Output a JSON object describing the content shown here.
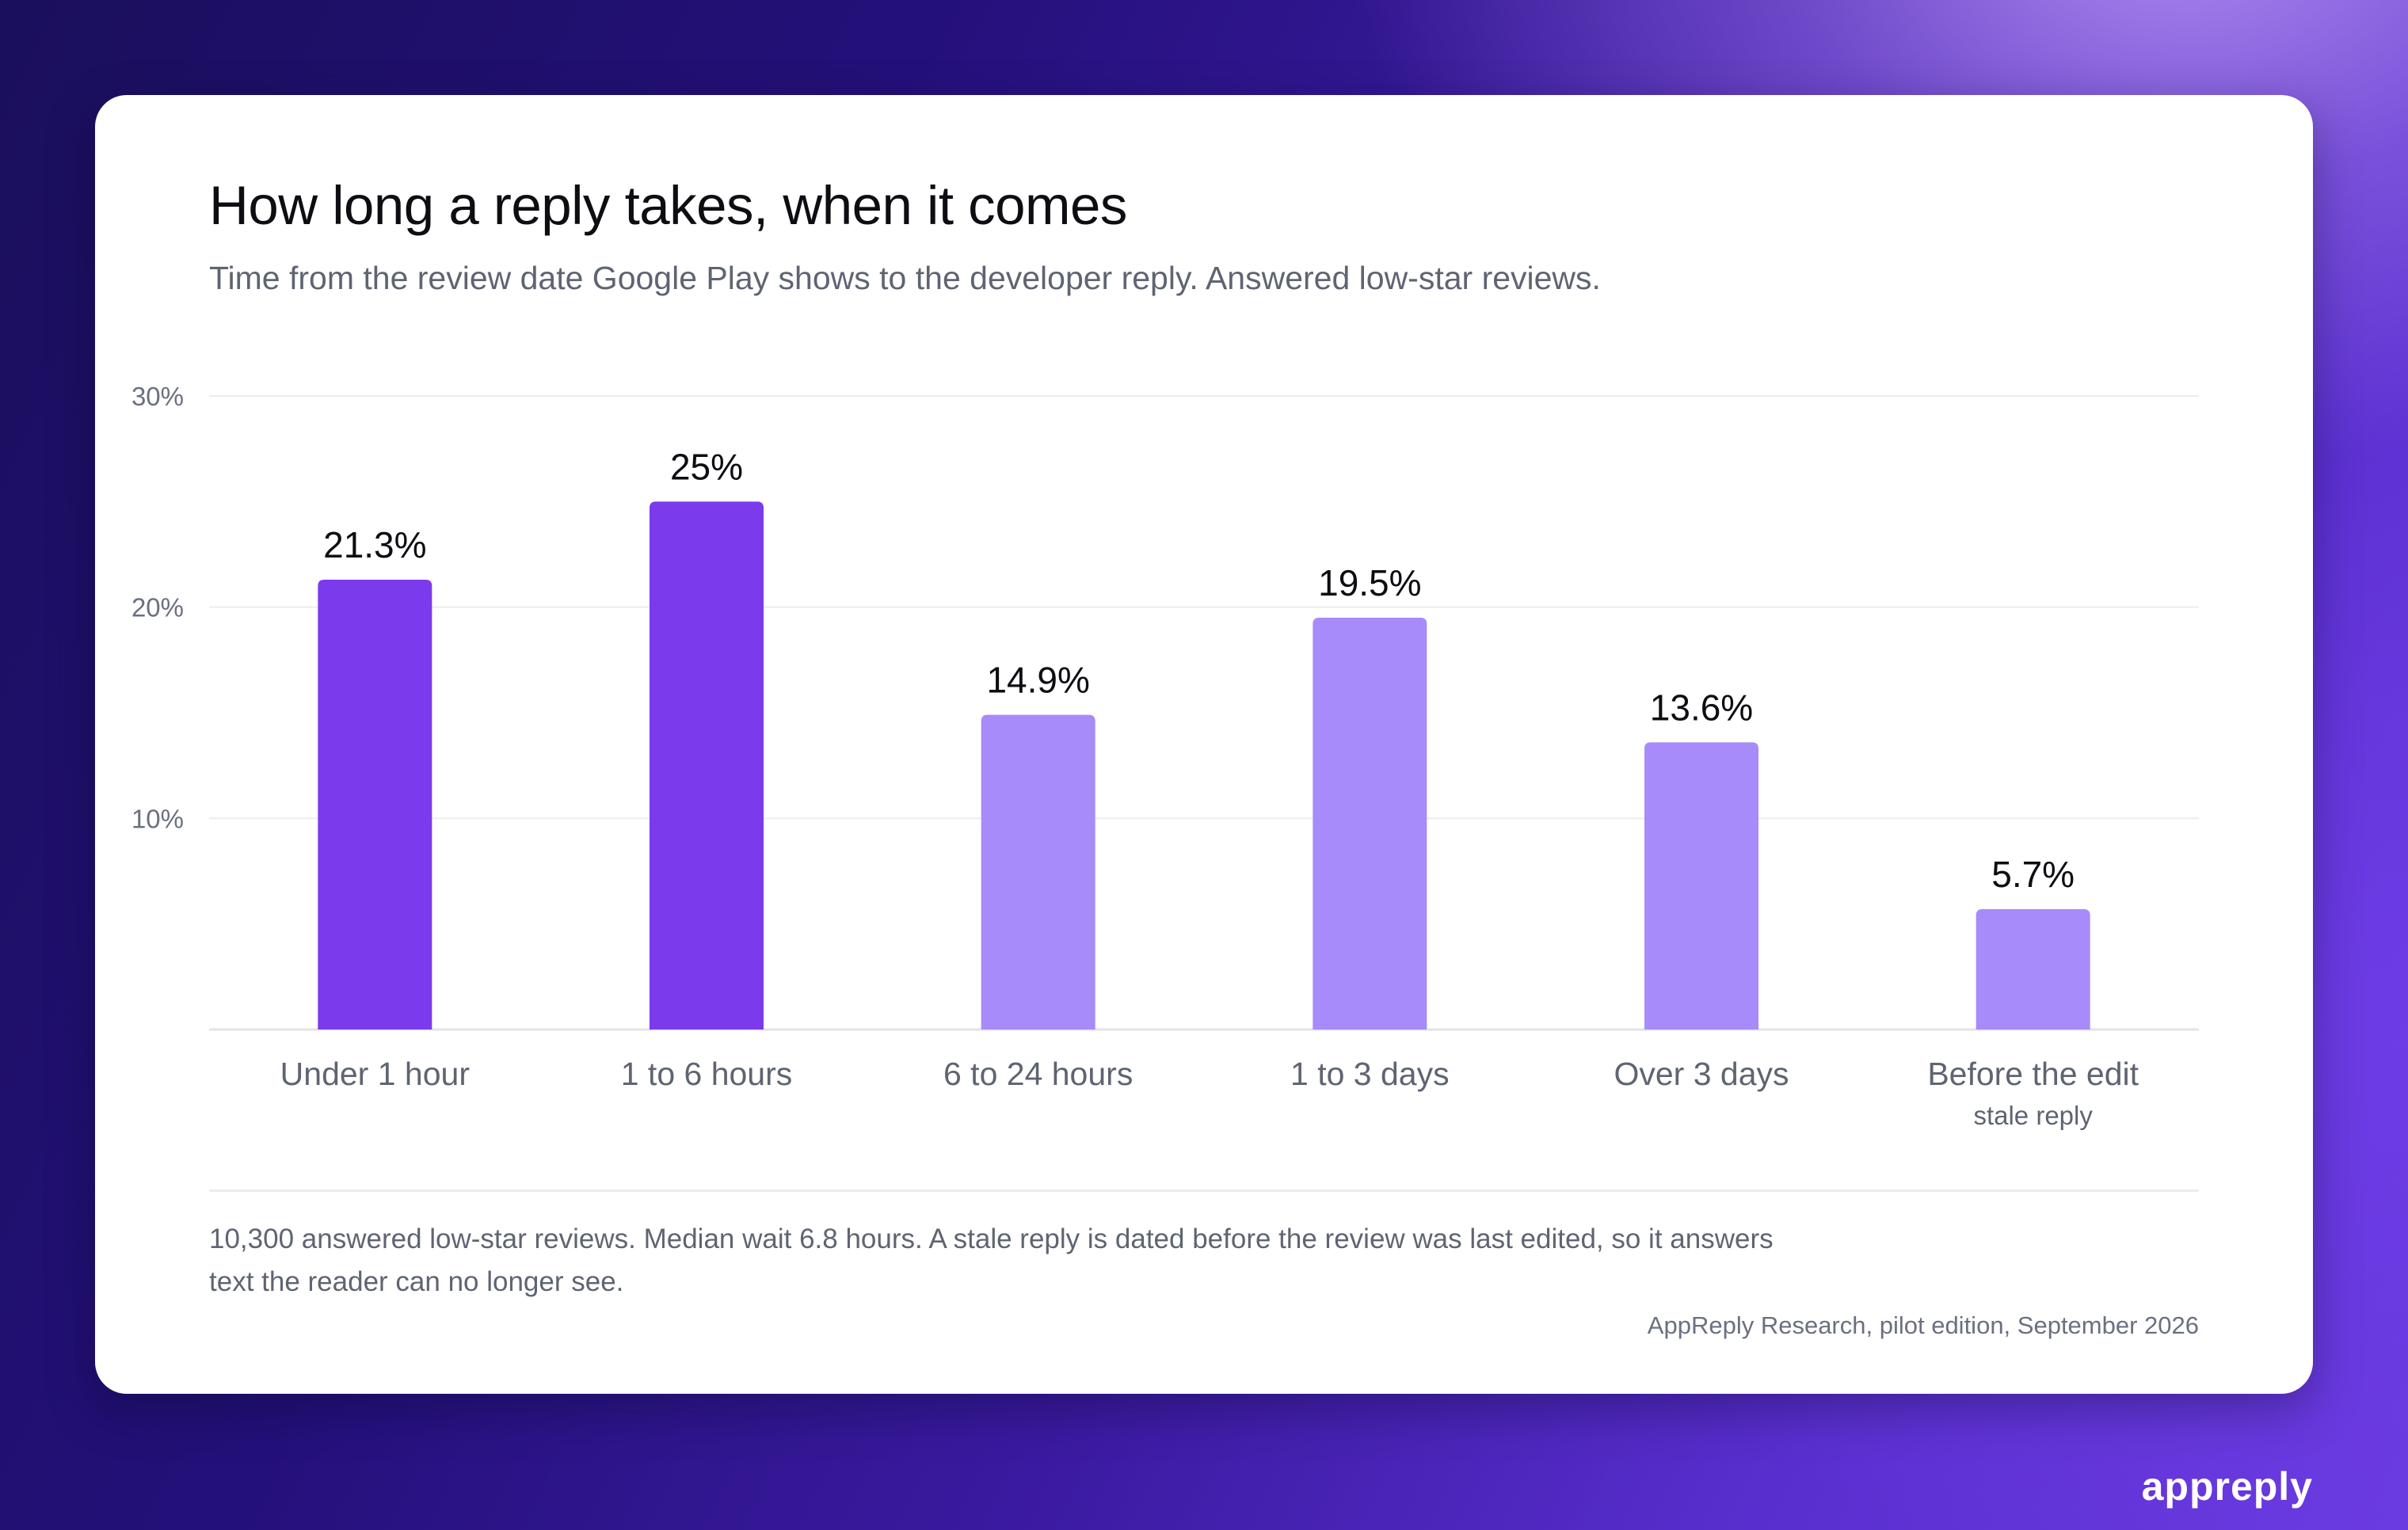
{
  "card": {
    "title": "How long a reply takes, when it comes",
    "subtitle": "Time from the review date Google Play shows to the developer reply. Answered low-star reviews.",
    "footnote": "10,300 answered low-star reviews. Median wait 6.8 hours. A stale reply is dated before the review was last edited, so it answers text the reader can no longer see.",
    "source": "AppReply Research, pilot edition, September 2026"
  },
  "brand": "appreply",
  "chart_data": {
    "type": "bar",
    "categories": [
      "Under 1 hour",
      "1 to 6 hours",
      "6 to 24 hours",
      "1 to 3 days",
      "Over 3 days",
      "Before the edit"
    ],
    "category_sublabels": [
      "",
      "",
      "",
      "",
      "",
      "stale reply"
    ],
    "values": [
      21.3,
      25,
      14.9,
      19.5,
      13.6,
      5.7
    ],
    "value_labels": [
      "21.3%",
      "25%",
      "14.9%",
      "19.5%",
      "13.6%",
      "5.7%"
    ],
    "highlighted": [
      true,
      true,
      false,
      false,
      false,
      false
    ],
    "title": "How long a reply takes, when it comes",
    "xlabel": "",
    "ylabel": "",
    "ylim": [
      0,
      30
    ],
    "yticks": [
      10,
      20,
      30
    ],
    "ytick_labels": [
      "10%",
      "20%",
      "30%"
    ],
    "grid": true,
    "colors": {
      "highlight": "#7c3aed",
      "default": "#a78bfa",
      "grid": "#ececf1",
      "axis": "#e2e2e8",
      "tick_text": "#6b7080",
      "category_text": "#5e6472",
      "value_text": "#0d0d12"
    }
  }
}
